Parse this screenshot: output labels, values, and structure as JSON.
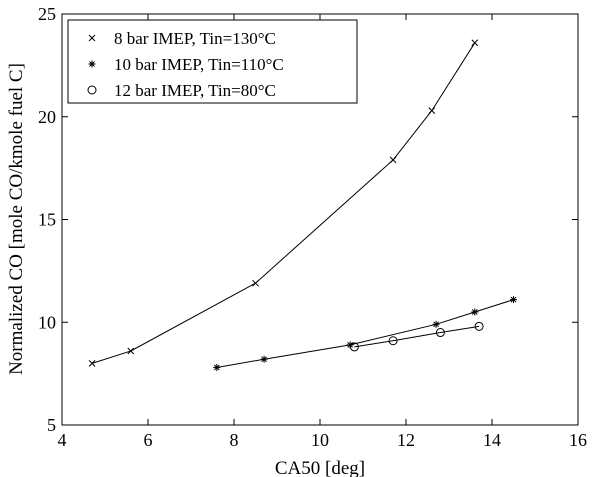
{
  "chart_data": {
    "type": "line",
    "xlabel": "CA50 [deg]",
    "ylabel": "Normalized CO [mole CO/kmole fuel C]",
    "xlim": [
      4,
      16
    ],
    "ylim": [
      5,
      25
    ],
    "xticks": [
      4,
      6,
      8,
      10,
      12,
      14,
      16
    ],
    "yticks": [
      5,
      10,
      15,
      20,
      25
    ],
    "grid": false,
    "legend_position": "top-left",
    "series": [
      {
        "name": "8 bar IMEP, Tin=130°C",
        "marker": "x",
        "x": [
          4.7,
          5.6,
          8.5,
          11.7,
          12.6,
          13.6
        ],
        "y": [
          8.0,
          8.6,
          11.9,
          17.9,
          20.3,
          23.6
        ]
      },
      {
        "name": "10 bar IMEP, Tin=110°C",
        "marker": "star",
        "x": [
          7.6,
          8.7,
          10.7,
          12.7,
          13.6,
          14.5
        ],
        "y": [
          7.8,
          8.2,
          8.9,
          9.9,
          10.5,
          11.1
        ]
      },
      {
        "name": "12 bar IMEP, Tin=80°C",
        "marker": "circle",
        "x": [
          10.8,
          11.7,
          12.8,
          13.7
        ],
        "y": [
          8.8,
          9.1,
          9.5,
          9.8
        ]
      }
    ]
  }
}
